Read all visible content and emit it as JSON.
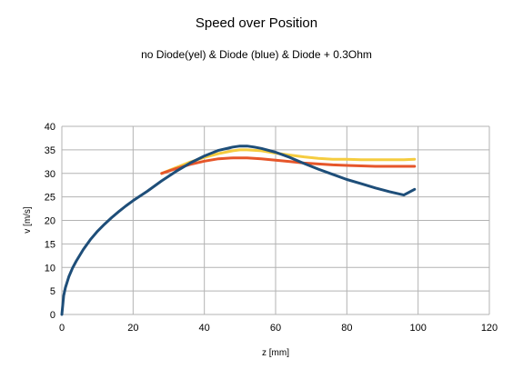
{
  "chart_data": {
    "type": "line",
    "title": "Speed over Position",
    "subtitle": "no Diode(yel) & Diode (blue) & Diode + 0.3Ohm",
    "xlabel": "z [mm]",
    "ylabel": "v [m/s]",
    "xlim": [
      0,
      120
    ],
    "ylim": [
      0,
      40
    ],
    "xticks": [
      0,
      20,
      40,
      60,
      80,
      100,
      120
    ],
    "yticks": [
      0,
      5,
      10,
      15,
      20,
      25,
      30,
      35,
      40
    ],
    "grid": true,
    "legend": "none",
    "series": [
      {
        "color": "#f5cc3f",
        "x": [
          28,
          32,
          36,
          40,
          44,
          48,
          50,
          52,
          56,
          60,
          64,
          68,
          72,
          76,
          80,
          84,
          88,
          92,
          96,
          99
        ],
        "y": [
          30.0,
          31.2,
          32.4,
          33.4,
          34.2,
          34.8,
          35.0,
          35.0,
          34.8,
          34.3,
          33.9,
          33.5,
          33.2,
          33.0,
          33.0,
          32.9,
          32.9,
          32.9,
          32.9,
          33.0
        ]
      },
      {
        "color": "#e6562a",
        "x": [
          28,
          32,
          36,
          40,
          44,
          48,
          52,
          56,
          60,
          64,
          68,
          72,
          76,
          80,
          84,
          88,
          92,
          96,
          99
        ],
        "y": [
          30.0,
          31.0,
          31.9,
          32.6,
          33.1,
          33.3,
          33.3,
          33.1,
          32.8,
          32.5,
          32.2,
          32.0,
          31.8,
          31.7,
          31.6,
          31.5,
          31.5,
          31.5,
          31.5
        ]
      },
      {
        "color": "#1e4e79",
        "x": [
          0,
          0.5,
          1,
          2,
          3,
          4,
          6,
          8,
          10,
          12,
          14,
          16,
          18,
          20,
          24,
          28,
          32,
          36,
          40,
          44,
          48,
          50,
          52,
          54,
          56,
          60,
          64,
          68,
          72,
          76,
          80,
          84,
          88,
          92,
          96,
          99
        ],
        "y": [
          0,
          4,
          5.7,
          8.1,
          9.9,
          11.3,
          13.8,
          15.9,
          17.7,
          19.2,
          20.6,
          21.9,
          23.1,
          24.2,
          26.2,
          28.4,
          30.4,
          32.2,
          33.7,
          34.9,
          35.6,
          35.8,
          35.8,
          35.6,
          35.3,
          34.5,
          33.4,
          32.1,
          30.9,
          29.8,
          28.7,
          27.8,
          26.9,
          26.1,
          25.4,
          26.6
        ]
      }
    ]
  }
}
